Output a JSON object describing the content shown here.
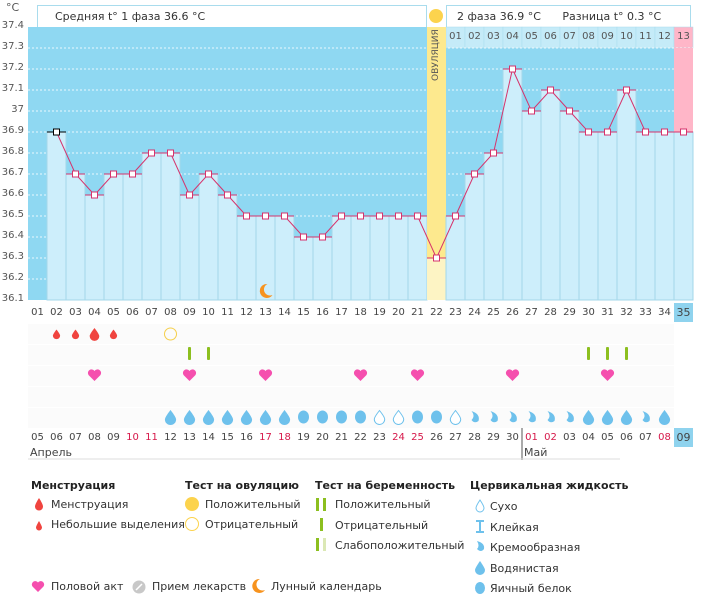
{
  "unit_label": "°C",
  "header": {
    "phase1_avg": "Средняя t° 1 фаза 36.6 °C",
    "phase2_avg": "2 фаза 36.9 °C",
    "difference": "Разница t° 0.3 °C",
    "ovulation_label": "ОВУЛЯЦИЯ"
  },
  "colors": {
    "sky": "#8fd8f2",
    "bar": "#cdeefb",
    "line": "#d6336c",
    "ovulation": "#fde98e",
    "pink": "#ffb6c8",
    "weekend": "#d6184a"
  },
  "chart_data": {
    "type": "line",
    "xlabel": "",
    "ylabel": "°C",
    "ylim": [
      36.1,
      37.4
    ],
    "y_ticks": [
      "37.4",
      "37.3",
      "37.2",
      "37.1",
      "37",
      "36.9",
      "36.8",
      "36.7",
      "36.6",
      "36.5",
      "36.4",
      "36.3",
      "36.2",
      "36.1"
    ],
    "cycle_days": [
      "01",
      "02",
      "03",
      "04",
      "05",
      "06",
      "07",
      "08",
      "09",
      "10",
      "11",
      "12",
      "13",
      "14",
      "15",
      "16",
      "17",
      "18",
      "19",
      "20",
      "21",
      "22",
      "23",
      "24",
      "25",
      "26",
      "27",
      "28",
      "29",
      "30",
      "31",
      "32",
      "33",
      "34",
      "35"
    ],
    "temperatures": [
      null,
      36.9,
      36.7,
      36.6,
      36.7,
      36.7,
      36.8,
      36.8,
      36.6,
      36.7,
      36.6,
      36.5,
      36.5,
      36.5,
      36.4,
      36.4,
      36.5,
      36.5,
      36.5,
      36.5,
      36.5,
      36.3,
      36.5,
      36.7,
      36.8,
      37.2,
      37.0,
      37.1,
      37.0,
      36.9,
      36.9,
      37.1,
      36.9,
      36.9,
      36.9
    ],
    "ovulation_day": 22,
    "phase2_labels": [
      "01",
      "02",
      "03",
      "04",
      "05",
      "06",
      "07",
      "08",
      "09",
      "10",
      "11",
      "12",
      "13"
    ],
    "dates": [
      "05",
      "06",
      "07",
      "08",
      "09",
      "10",
      "11",
      "12",
      "13",
      "14",
      "15",
      "16",
      "17",
      "18",
      "19",
      "20",
      "21",
      "22",
      "23",
      "24",
      "25",
      "26",
      "27",
      "28",
      "29",
      "30",
      "01",
      "02",
      "03",
      "04",
      "05",
      "06",
      "07",
      "08",
      "09"
    ],
    "weekend_dates_idx": [
      5,
      6,
      12,
      13,
      19,
      20,
      26,
      27,
      33
    ],
    "months": [
      {
        "label": "Апрель",
        "start": 1
      },
      {
        "label": "Май",
        "start": 27
      }
    ],
    "moon_day": 13,
    "menstruation": {
      "2": "small",
      "3": "small",
      "4": "heavy",
      "5": "small"
    },
    "ovulation_test": {
      "8": "negative"
    },
    "pregnancy_test": {
      "9": "negative",
      "10": "negative",
      "30": "negative",
      "31": "negative",
      "32": "negative"
    },
    "intercourse_days": [
      4,
      9,
      13,
      18,
      21,
      26,
      31
    ],
    "cervical_fluid": {
      "8": "watery",
      "9": "watery",
      "10": "watery",
      "11": "watery",
      "12": "watery",
      "13": "watery",
      "14": "watery",
      "15": "eggwhite",
      "16": "eggwhite",
      "17": "eggwhite",
      "18": "eggwhite",
      "19": "dry",
      "20": "dry",
      "21": "eggwhite",
      "22": "eggwhite",
      "23": "dry",
      "24": "creamy",
      "25": "creamy",
      "26": "creamy",
      "27": "creamy",
      "28": "creamy",
      "29": "creamy",
      "30": "watery",
      "31": "watery",
      "32": "watery",
      "33": "creamy",
      "34": "watery"
    }
  },
  "legend": {
    "menstruation": {
      "title": "Менструация",
      "items": [
        "Менструация",
        "Небольшие выделения"
      ]
    },
    "ovulation_test": {
      "title": "Тест на овуляцию",
      "items": [
        "Положительный",
        "Отрицательный"
      ]
    },
    "pregnancy_test": {
      "title": "Тест на беременность",
      "items": [
        "Положительный",
        "Отрицательный",
        "Слабоположительный"
      ]
    },
    "cervical": {
      "title": "Цервикальная жидкость",
      "items": [
        "Сухо",
        "Клейкая",
        "Кремообразная",
        "Водянистая",
        "Яичный белок"
      ]
    },
    "misc": [
      "Половой акт",
      "Прием лекарств",
      "Лунный календарь"
    ]
  }
}
